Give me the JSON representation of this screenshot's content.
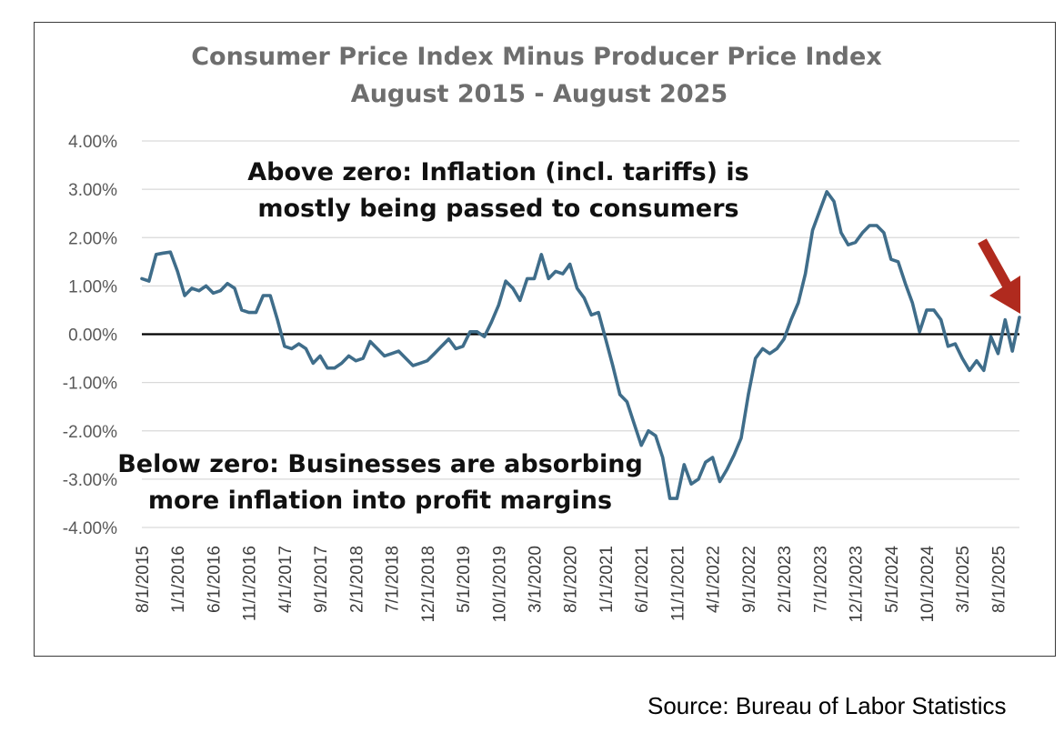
{
  "chart_data": {
    "type": "line",
    "title": "Consumer Price Index Minus Producer Price Index",
    "subtitle": "August 2015 - August 2025",
    "xlabel": "",
    "ylabel": "",
    "ylim": [
      -4,
      4
    ],
    "y_ticks": [
      "4.00%",
      "3.00%",
      "2.00%",
      "1.00%",
      "0.00%",
      "-1.00%",
      "-2.00%",
      "-3.00%",
      "-4.00%"
    ],
    "x_ticks": [
      "8/1/2015",
      "1/1/2016",
      "6/1/2016",
      "11/1/2016",
      "4/1/2017",
      "9/1/2017",
      "2/1/2018",
      "7/1/2018",
      "12/1/2018",
      "5/1/2019",
      "10/1/2019",
      "3/1/2020",
      "8/1/2020",
      "1/1/2021",
      "6/1/2021",
      "11/1/2021",
      "4/1/2022",
      "9/1/2022",
      "2/1/2023",
      "7/1/2023",
      "12/1/2023",
      "5/1/2024",
      "10/1/2024",
      "3/1/2025",
      "8/1/2025"
    ],
    "grid": true,
    "series": [
      {
        "color": "#3f6d8a",
        "start": "2015-08",
        "frequency": "monthly",
        "values": [
          1.15,
          1.1,
          1.65,
          1.68,
          1.7,
          1.3,
          0.8,
          0.95,
          0.9,
          1.0,
          0.85,
          0.9,
          1.05,
          0.95,
          0.5,
          0.45,
          0.45,
          0.8,
          0.8,
          0.3,
          -0.25,
          -0.3,
          -0.2,
          -0.3,
          -0.6,
          -0.45,
          -0.7,
          -0.7,
          -0.6,
          -0.45,
          -0.55,
          -0.5,
          -0.15,
          -0.3,
          -0.45,
          -0.4,
          -0.35,
          -0.5,
          -0.65,
          -0.6,
          -0.55,
          -0.4,
          -0.25,
          -0.1,
          -0.3,
          -0.25,
          0.05,
          0.05,
          -0.05,
          0.25,
          0.6,
          1.1,
          0.95,
          0.7,
          1.15,
          1.15,
          1.65,
          1.15,
          1.3,
          1.25,
          1.45,
          0.95,
          0.75,
          0.4,
          0.45,
          -0.1,
          -0.65,
          -1.25,
          -1.4,
          -1.85,
          -2.3,
          -2.0,
          -2.1,
          -2.55,
          -3.4,
          -3.4,
          -2.7,
          -3.1,
          -3.0,
          -2.65,
          -2.55,
          -3.05,
          -2.8,
          -2.5,
          -2.15,
          -1.25,
          -0.5,
          -0.3,
          -0.4,
          -0.3,
          -0.1,
          0.3,
          0.65,
          1.25,
          2.15,
          2.55,
          2.95,
          2.75,
          2.1,
          1.85,
          1.9,
          2.1,
          2.25,
          2.25,
          2.1,
          1.55,
          1.5,
          1.05,
          0.65,
          0.05,
          0.5,
          0.5,
          0.3,
          -0.25,
          -0.2,
          -0.5,
          -0.75,
          -0.55,
          -0.75,
          -0.05,
          -0.4,
          0.3,
          -0.35,
          0.35
        ]
      }
    ],
    "annotations": [
      {
        "lines": [
          "Above zero: Inflation (incl. tariffs) is",
          "mostly being passed to consumers"
        ]
      },
      {
        "lines": [
          "Below zero: Businesses are absorbing",
          "more inflation into profit margins"
        ]
      }
    ],
    "arrow_color": "#b02a1e"
  },
  "source": "Source: Bureau of Labor Statistics"
}
